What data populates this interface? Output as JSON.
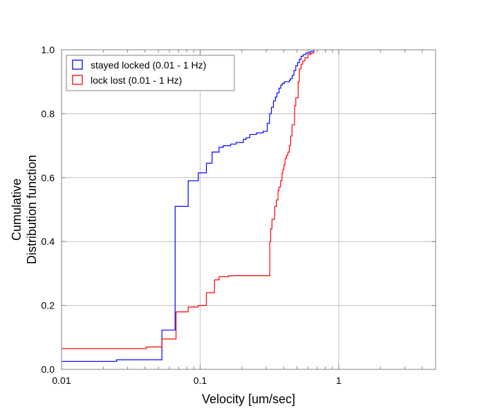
{
  "chart_data": {
    "type": "line",
    "step": true,
    "xscale": "log",
    "xlim": [
      0.01,
      5
    ],
    "ylim": [
      0,
      1
    ],
    "xlabel": "Velocity [um/sec]",
    "ylabel": [
      "Cumulative",
      "Distribution function"
    ],
    "grid": true,
    "legend_position": "top-left",
    "xticks": [
      {
        "value": 0.01,
        "label": "0.01"
      },
      {
        "value": 0.1,
        "label": "0.1"
      },
      {
        "value": 1,
        "label": "1"
      }
    ],
    "yticks": [
      {
        "value": 0.0,
        "label": "0.0"
      },
      {
        "value": 0.2,
        "label": "0.2"
      },
      {
        "value": 0.4,
        "label": "0.4"
      },
      {
        "value": 0.6,
        "label": "0.6"
      },
      {
        "value": 0.8,
        "label": "0.8"
      },
      {
        "value": 1.0,
        "label": "1.0"
      }
    ],
    "series": [
      {
        "name": "stayed locked (0.01 - 1 Hz)",
        "color": "#0000ff",
        "x": [
          0.01,
          0.025,
          0.053,
          0.066,
          0.082,
          0.097,
          0.111,
          0.122,
          0.137,
          0.147,
          0.166,
          0.182,
          0.205,
          0.215,
          0.228,
          0.255,
          0.285,
          0.305,
          0.317,
          0.327,
          0.338,
          0.349,
          0.358,
          0.371,
          0.382,
          0.392,
          0.405,
          0.44,
          0.45,
          0.462,
          0.475,
          0.49,
          0.505,
          0.52,
          0.535,
          0.555,
          0.58,
          0.62,
          0.66
        ],
        "y": [
          0.025,
          0.03,
          0.123,
          0.51,
          0.59,
          0.615,
          0.645,
          0.68,
          0.695,
          0.7,
          0.705,
          0.71,
          0.72,
          0.725,
          0.735,
          0.74,
          0.745,
          0.77,
          0.8,
          0.82,
          0.84,
          0.852,
          0.865,
          0.88,
          0.89,
          0.895,
          0.9,
          0.905,
          0.91,
          0.92,
          0.935,
          0.95,
          0.96,
          0.97,
          0.98,
          0.985,
          0.99,
          0.995,
          1.0
        ]
      },
      {
        "name": "lock lost (0.01 - 1 Hz)",
        "color": "#ff0000",
        "x": [
          0.01,
          0.041,
          0.053,
          0.067,
          0.082,
          0.097,
          0.111,
          0.127,
          0.137,
          0.16,
          0.318,
          0.323,
          0.33,
          0.345,
          0.355,
          0.365,
          0.37,
          0.38,
          0.39,
          0.395,
          0.402,
          0.41,
          0.42,
          0.43,
          0.44,
          0.45,
          0.46,
          0.48,
          0.49,
          0.51,
          0.52,
          0.535,
          0.55,
          0.57,
          0.6,
          0.63,
          0.66
        ],
        "y": [
          0.065,
          0.07,
          0.095,
          0.18,
          0.195,
          0.2,
          0.24,
          0.28,
          0.29,
          0.293,
          0.4,
          0.44,
          0.47,
          0.51,
          0.53,
          0.56,
          0.57,
          0.59,
          0.615,
          0.625,
          0.64,
          0.66,
          0.67,
          0.68,
          0.7,
          0.73,
          0.765,
          0.825,
          0.85,
          0.9,
          0.94,
          0.955,
          0.965,
          0.975,
          0.985,
          0.99,
          0.995
        ]
      }
    ]
  }
}
